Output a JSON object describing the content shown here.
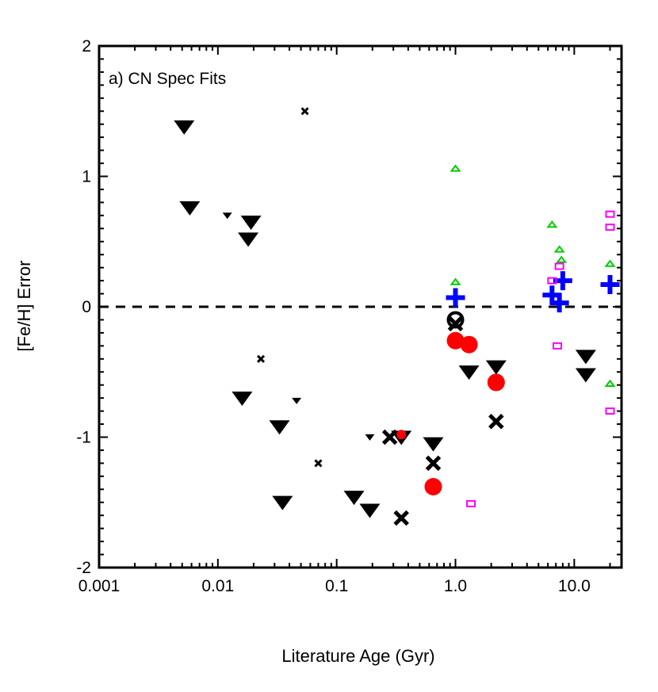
{
  "chart_data": {
    "type": "scatter",
    "title": "",
    "panel_label": "a) CN Spec Fits",
    "xlabel": "Literature Age (Gyr)",
    "ylabel": "[Fe/H] Error",
    "xscale": "log",
    "xlim": [
      0.001,
      25
    ],
    "ylim": [
      -2,
      2
    ],
    "x_ticks": [
      {
        "value": 0.001,
        "label": "0.001"
      },
      {
        "value": 0.01,
        "label": "0.01"
      },
      {
        "value": 0.1,
        "label": "0.1"
      },
      {
        "value": 1.0,
        "label": "1.0"
      },
      {
        "value": 10.0,
        "label": "10.0"
      }
    ],
    "y_ticks": [
      {
        "value": 2,
        "label": "2"
      },
      {
        "value": 1,
        "label": "1"
      },
      {
        "value": 0,
        "label": "0"
      },
      {
        "value": -1,
        "label": "-1"
      },
      {
        "value": -2,
        "label": "-2"
      }
    ],
    "reference_line": {
      "y": 0,
      "style": "dashed",
      "color": "#000000"
    },
    "series": [
      {
        "name": "large-triangles",
        "marker": "triangle-down",
        "color": "#000000",
        "points": [
          {
            "x": 0.0052,
            "y": 1.38,
            "size": "large"
          },
          {
            "x": 0.0058,
            "y": 0.76,
            "size": "large"
          },
          {
            "x": 0.019,
            "y": 0.65,
            "size": "large"
          },
          {
            "x": 0.018,
            "y": 0.52,
            "size": "large"
          },
          {
            "x": 0.016,
            "y": -0.7,
            "size": "large"
          },
          {
            "x": 0.033,
            "y": -0.92,
            "size": "large"
          },
          {
            "x": 0.035,
            "y": -1.5,
            "size": "large"
          },
          {
            "x": 0.14,
            "y": -1.46,
            "size": "large"
          },
          {
            "x": 0.19,
            "y": -1.56,
            "size": "large"
          },
          {
            "x": 0.35,
            "y": -1.0,
            "size": "large"
          },
          {
            "x": 0.65,
            "y": -1.05,
            "size": "large"
          },
          {
            "x": 1.3,
            "y": -0.5,
            "size": "large"
          },
          {
            "x": 2.2,
            "y": -0.46,
            "size": "large"
          },
          {
            "x": 12.5,
            "y": -0.38,
            "size": "large"
          },
          {
            "x": 12.5,
            "y": -0.52,
            "size": "large"
          },
          {
            "x": 0.012,
            "y": 0.7,
            "size": "small"
          },
          {
            "x": 0.046,
            "y": -0.72,
            "size": "small"
          },
          {
            "x": 0.19,
            "y": -1.0,
            "size": "small"
          }
        ]
      },
      {
        "name": "crosses",
        "marker": "x-cross",
        "color": "#000000",
        "points": [
          {
            "x": 0.054,
            "y": 1.5,
            "size": "small"
          },
          {
            "x": 0.023,
            "y": -0.4,
            "size": "small"
          },
          {
            "x": 0.07,
            "y": -1.2,
            "size": "small"
          },
          {
            "x": 0.28,
            "y": -1.0,
            "size": "large"
          },
          {
            "x": 0.35,
            "y": -1.62,
            "size": "large"
          },
          {
            "x": 0.65,
            "y": -1.2,
            "size": "large"
          },
          {
            "x": 1.0,
            "y": -0.13,
            "size": "large"
          },
          {
            "x": 2.2,
            "y": -0.88,
            "size": "large"
          }
        ]
      },
      {
        "name": "open-circles",
        "marker": "circle-open",
        "color": "#000000",
        "points": [
          {
            "x": 1.0,
            "y": -0.1
          }
        ]
      },
      {
        "name": "red-circles",
        "marker": "circle-filled",
        "color": "#ff0000",
        "points": [
          {
            "x": 0.35,
            "y": -0.98,
            "size": "small"
          },
          {
            "x": 1.0,
            "y": -0.26,
            "size": "large"
          },
          {
            "x": 1.3,
            "y": -0.29,
            "size": "large"
          },
          {
            "x": 2.2,
            "y": -0.58,
            "size": "large"
          },
          {
            "x": 0.65,
            "y": -1.38,
            "size": "large"
          }
        ]
      },
      {
        "name": "blue-plus",
        "marker": "plus",
        "color": "#0000ff",
        "points": [
          {
            "x": 1.0,
            "y": 0.07
          },
          {
            "x": 6.5,
            "y": 0.09
          },
          {
            "x": 7.5,
            "y": 0.03
          },
          {
            "x": 8.0,
            "y": 0.2
          },
          {
            "x": 20.0,
            "y": 0.17
          }
        ]
      },
      {
        "name": "green-triangles",
        "marker": "triangle-up-open",
        "color": "#00cc00",
        "points": [
          {
            "x": 1.0,
            "y": 1.06
          },
          {
            "x": 1.0,
            "y": 0.19
          },
          {
            "x": 6.5,
            "y": 0.63
          },
          {
            "x": 7.5,
            "y": 0.44
          },
          {
            "x": 7.8,
            "y": 0.36
          },
          {
            "x": 20.0,
            "y": 0.33
          },
          {
            "x": 20.0,
            "y": -0.59
          }
        ]
      },
      {
        "name": "magenta-squares",
        "marker": "square-open",
        "color": "#ff00ff",
        "points": [
          {
            "x": 1.35,
            "y": -1.51
          },
          {
            "x": 6.5,
            "y": 0.2
          },
          {
            "x": 7.5,
            "y": 0.31
          },
          {
            "x": 7.2,
            "y": -0.3
          },
          {
            "x": 20.0,
            "y": 0.71
          },
          {
            "x": 20.0,
            "y": 0.61
          },
          {
            "x": 20.0,
            "y": -0.8
          }
        ]
      }
    ]
  }
}
